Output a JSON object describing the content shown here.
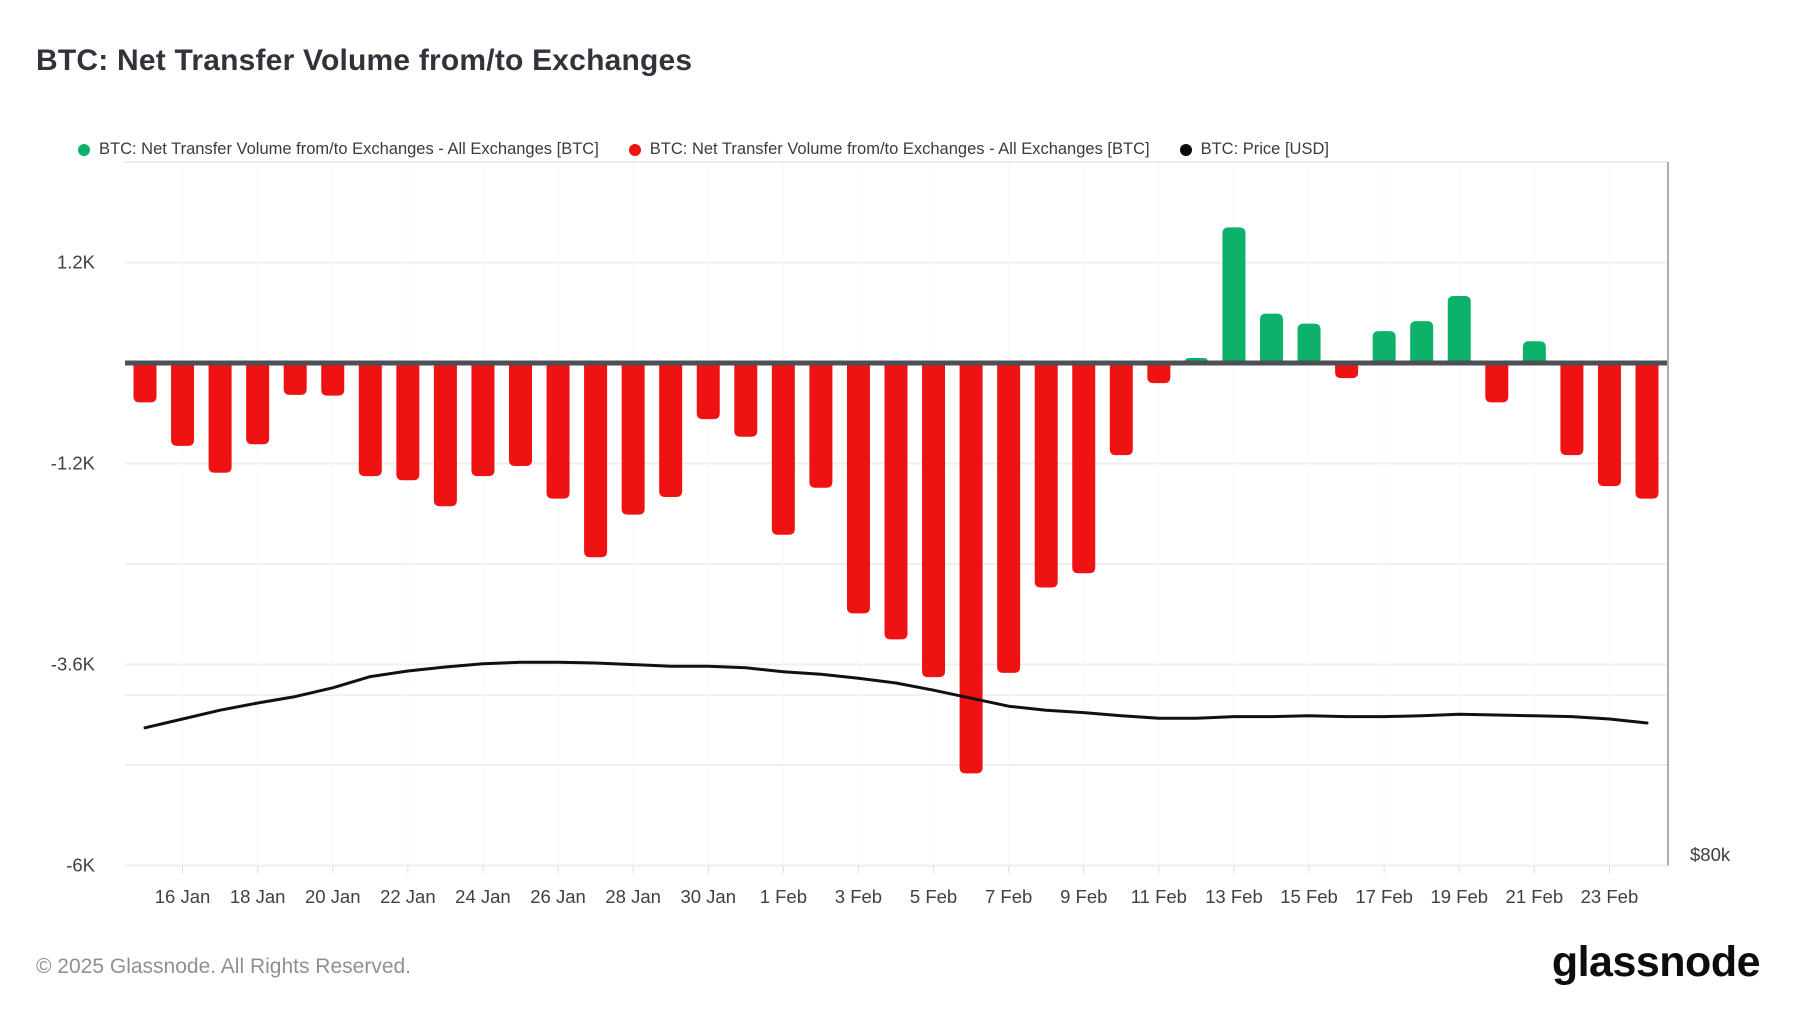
{
  "title": "BTC: Net Transfer Volume from/to Exchanges",
  "legend": [
    {
      "label": "BTC: Net Transfer Volume from/to Exchanges - All Exchanges [BTC]",
      "color": "#0cb269"
    },
    {
      "label": "BTC: Net Transfer Volume from/to Exchanges - All Exchanges [BTC]",
      "color": "#ee1212"
    },
    {
      "label": "BTC: Price [USD]",
      "color": "#0a0a0a"
    }
  ],
  "footer": {
    "copyright": "© 2025 Glassnode. All Rights Reserved.",
    "brand": "glassnode"
  },
  "chart_data": {
    "type": "bar",
    "title": "BTC: Net Transfer Volume from/to Exchanges",
    "x": [
      "15 Jan",
      "16 Jan",
      "17 Jan",
      "18 Jan",
      "19 Jan",
      "20 Jan",
      "21 Jan",
      "22 Jan",
      "23 Jan",
      "24 Jan",
      "25 Jan",
      "26 Jan",
      "27 Jan",
      "28 Jan",
      "29 Jan",
      "30 Jan",
      "31 Jan",
      "1 Feb",
      "2 Feb",
      "3 Feb",
      "4 Feb",
      "5 Feb",
      "6 Feb",
      "7 Feb",
      "8 Feb",
      "9 Feb",
      "10 Feb",
      "11 Feb",
      "12 Feb",
      "13 Feb",
      "14 Feb",
      "15 Feb",
      "16 Feb",
      "17 Feb",
      "18 Feb",
      "19 Feb",
      "20 Feb",
      "21 Feb",
      "22 Feb",
      "23 Feb",
      "24 Feb"
    ],
    "series": [
      {
        "name": "BTC: Net Transfer Volume from/to Exchanges - All Exchanges [BTC]",
        "type": "bar",
        "values": [
          -470,
          -990,
          -1310,
          -970,
          -380,
          -390,
          -1350,
          -1400,
          -1710,
          -1350,
          -1230,
          -1620,
          -2320,
          -1810,
          -1600,
          -670,
          -880,
          -2050,
          -1490,
          -2990,
          -3300,
          -3750,
          -4900,
          -3700,
          -2680,
          -2510,
          -1100,
          -240,
          60,
          1620,
          590,
          470,
          -180,
          380,
          500,
          800,
          -470,
          260,
          -1100,
          -1470,
          -1620
        ],
        "color_positive": "#0cb269",
        "color_negative": "#ee1212"
      },
      {
        "name": "BTC: Price [USD]",
        "type": "line",
        "unit": "USD thousands",
        "values": [
          95.9,
          97.0,
          98.1,
          99.0,
          99.8,
          100.9,
          102.3,
          103.0,
          103.5,
          103.9,
          104.1,
          104.1,
          104.0,
          103.8,
          103.6,
          103.6,
          103.4,
          102.9,
          102.6,
          102.1,
          101.5,
          100.6,
          99.6,
          98.6,
          98.1,
          97.8,
          97.4,
          97.1,
          97.1,
          97.3,
          97.3,
          97.4,
          97.3,
          97.3,
          97.4,
          97.6,
          97.5,
          97.4,
          97.3,
          97.0,
          96.5
        ],
        "color": "#111111"
      }
    ],
    "x_ticks": [
      "16 Jan",
      "18 Jan",
      "20 Jan",
      "22 Jan",
      "24 Jan",
      "26 Jan",
      "28 Jan",
      "30 Jan",
      "1 Feb",
      "3 Feb",
      "5 Feb",
      "7 Feb",
      "9 Feb",
      "11 Feb",
      "13 Feb",
      "15 Feb",
      "17 Feb",
      "19 Feb",
      "21 Feb",
      "23 Feb"
    ],
    "y_left": {
      "ticks": [
        {
          "label": "1.2K",
          "value": 1200
        },
        {
          "label": "-1.2K",
          "value": -1200
        },
        {
          "label": "-3.6K",
          "value": -3600
        },
        {
          "label": "-6K",
          "value": -6000
        }
      ],
      "gridline_values": [
        2400,
        1200,
        -1200,
        -2400,
        -3600,
        -4800,
        -6000
      ],
      "range": [
        -6000,
        2400
      ],
      "zero_line": true
    },
    "y_right": {
      "ticks": [
        {
          "label": "$80k",
          "value": 80
        }
      ],
      "gridline_values": [
        100
      ],
      "axis_for": "price"
    },
    "legend_position": "top",
    "grid": true
  }
}
